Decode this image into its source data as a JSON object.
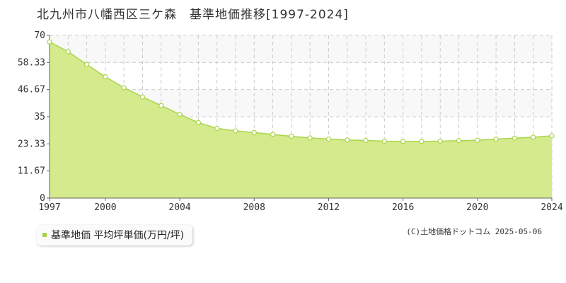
{
  "title": "北九州市八幡西区三ケ森　基準地価推移[1997-2024]",
  "credit": "(C)土地価格ドットコム 2025-05-06",
  "colors": {
    "fill": "#d5ea8c",
    "line": "#a9d44a",
    "marker_fill": "#ffffff",
    "grid": "#cccccc",
    "band": "#f8f8f8",
    "legend_swatch": "#a9d44a"
  },
  "chart_data": {
    "type": "area",
    "title": "北九州市八幡西区三ケ森　基準地価推移[1997-2024]",
    "xlabel": "",
    "ylabel": "",
    "xlim": [
      1997,
      2024
    ],
    "ylim": [
      0,
      70
    ],
    "grid": true,
    "legend_position": "bottom-left",
    "x_ticks": [
      "1997",
      "2000",
      "2004",
      "2008",
      "2012",
      "2016",
      "2020",
      "2024"
    ],
    "y_ticks": [
      "0",
      "11.67",
      "23.33",
      "35",
      "46.67",
      "58.33",
      "70"
    ],
    "series": [
      {
        "name": "基準地価 平均坪単価(万円/坪)",
        "x": [
          1997,
          1998,
          1999,
          2000,
          2001,
          2002,
          2003,
          2004,
          2005,
          2006,
          2007,
          2008,
          2009,
          2010,
          2011,
          2012,
          2013,
          2014,
          2015,
          2016,
          2017,
          2018,
          2019,
          2020,
          2021,
          2022,
          2023,
          2024
        ],
        "values": [
          67.2,
          63.0,
          57.5,
          52.2,
          47.5,
          43.5,
          39.8,
          36.0,
          32.5,
          30.0,
          28.9,
          28.2,
          27.4,
          26.6,
          25.9,
          25.4,
          25.0,
          24.8,
          24.5,
          24.4,
          24.4,
          24.5,
          24.7,
          24.9,
          25.4,
          25.8,
          26.2,
          26.8
        ]
      }
    ]
  },
  "legend": {
    "label": "基準地価 平均坪単価(万円/坪)"
  }
}
